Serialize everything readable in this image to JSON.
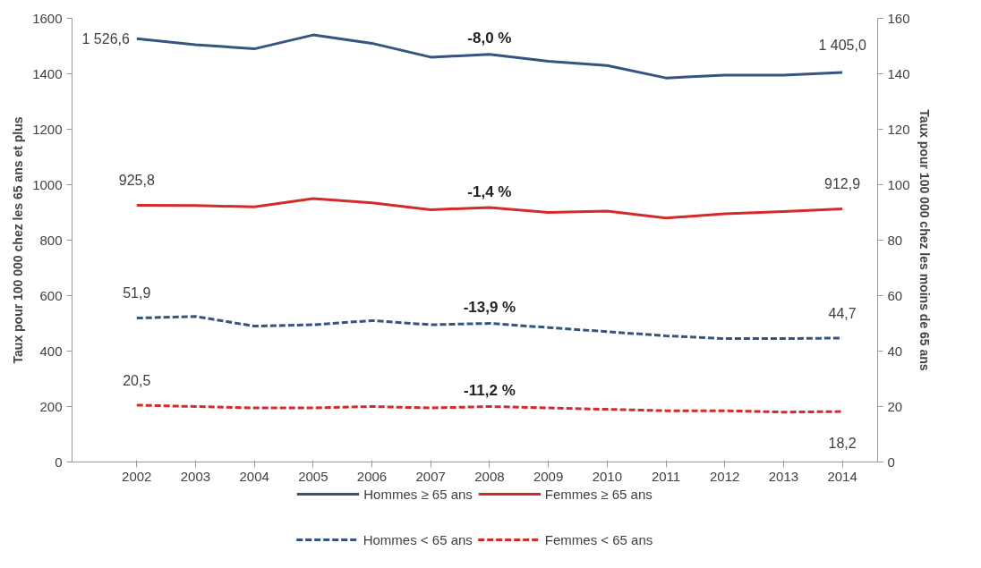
{
  "chart_data": {
    "type": "line",
    "categories": [
      "2002",
      "2003",
      "2004",
      "2005",
      "2006",
      "2007",
      "2008",
      "2009",
      "2010",
      "2011",
      "2012",
      "2013",
      "2014"
    ],
    "ylabel": "Taux pour 100 000 chez les 65 ans et plus",
    "y2label": "Taux pour 100 000 chez les moins de 65 ans",
    "ylim": [
      0,
      1600
    ],
    "yticks": [
      0,
      200,
      400,
      600,
      800,
      1000,
      1200,
      1400,
      1600
    ],
    "y2lim": [
      0,
      160
    ],
    "y2ticks": [
      0,
      20,
      40,
      60,
      80,
      100,
      120,
      140,
      160
    ],
    "series": [
      {
        "name": "Hommes ≥ 65 ans",
        "color": "#34557f",
        "line_style": "solid",
        "values": [
          1526.6,
          1505,
          1490,
          1540,
          1510,
          1460,
          1470,
          1445,
          1430,
          1385,
          1395,
          1395,
          1405.0
        ],
        "value_labels": [
          "1 526,6",
          null,
          null,
          null,
          null,
          null,
          null,
          null,
          null,
          null,
          null,
          null,
          "1 405,0"
        ]
      },
      {
        "name": "Femmes ≥ 65 ans",
        "color": "#d42a2a",
        "line_style": "solid",
        "values": [
          925.8,
          925,
          920,
          950,
          935,
          910,
          918,
          900,
          905,
          880,
          895,
          903,
          912.9
        ],
        "value_labels": [
          "925,8",
          null,
          null,
          null,
          null,
          null,
          null,
          null,
          null,
          null,
          null,
          null,
          "912,9"
        ]
      },
      {
        "name": "Hommes < 65 ans",
        "color": "#34557f",
        "line_style": "dashed",
        "axis": "y2",
        "values": [
          51.9,
          52.5,
          49,
          49.5,
          51,
          49.5,
          50,
          48.5,
          47,
          45.5,
          44.5,
          44.5,
          44.7
        ],
        "value_labels": [
          "51,9",
          null,
          null,
          null,
          null,
          null,
          null,
          null,
          null,
          null,
          null,
          null,
          "44,7"
        ]
      },
      {
        "name": "Femmes < 65 ans",
        "color": "#d42a2a",
        "line_style": "dashed",
        "axis": "y2",
        "values": [
          20.5,
          20,
          19.5,
          19.5,
          20,
          19.5,
          20,
          19.5,
          19,
          18.5,
          18.5,
          18,
          18.2
        ],
        "value_labels": [
          "20,5",
          null,
          null,
          null,
          null,
          null,
          null,
          null,
          null,
          null,
          null,
          null,
          "18,2"
        ]
      }
    ],
    "annotations": [
      "-8,0 %",
      "-1,4 %",
      "-13,9 %",
      "-11,2 %"
    ],
    "grid": false,
    "legend": "bottom",
    "marker": "none"
  }
}
